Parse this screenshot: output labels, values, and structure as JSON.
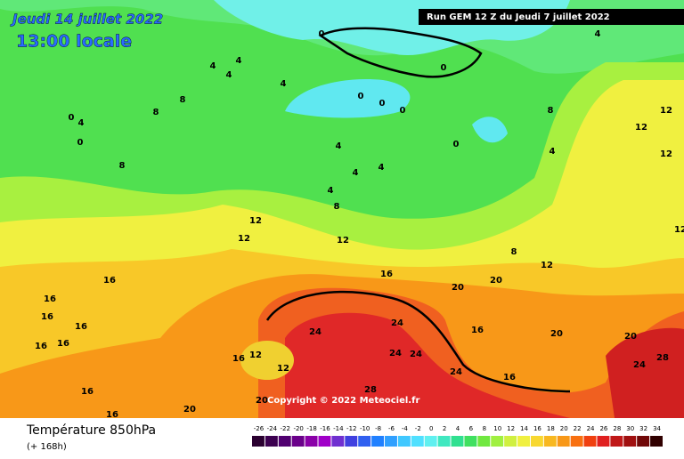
{
  "header": {
    "date": "Jeudi 14 juillet 2022",
    "time": "13:00 locale",
    "run": "Run GEM 12 Z du Jeudi 7 juillet 2022"
  },
  "map": {
    "copyright": "Copyright © 2022 Meteociel.fr",
    "contour_labels": [
      0,
      4,
      4,
      4,
      4,
      0,
      4,
      0,
      0,
      0,
      8,
      8,
      8,
      0,
      4,
      0,
      4,
      4,
      4,
      4,
      8,
      0,
      4,
      8,
      12,
      12,
      12,
      12,
      12,
      8,
      12,
      16,
      16,
      20,
      20,
      16,
      16,
      16,
      16,
      16,
      12,
      12,
      16,
      24,
      24,
      24,
      24,
      24,
      16,
      16,
      20,
      20,
      24,
      28,
      28,
      20,
      20,
      16,
      16,
      12,
      12
    ]
  },
  "footer": {
    "title": "Température 850hPa",
    "subtitle": "(+ 168h)"
  },
  "legend": {
    "values": [
      -26,
      -24,
      -22,
      -20,
      -18,
      -16,
      -14,
      -12,
      -10,
      -8,
      -6,
      -4,
      -2,
      0,
      2,
      4,
      6,
      8,
      10,
      12,
      14,
      16,
      18,
      20,
      22,
      24,
      26,
      28,
      30,
      32,
      34
    ],
    "colors": [
      "#2a0030",
      "#3c0050",
      "#500070",
      "#6a008a",
      "#8a00a8",
      "#a000c8",
      "#7030d0",
      "#4040e0",
      "#3060f0",
      "#2080ff",
      "#30a0ff",
      "#40c8ff",
      "#50e0ff",
      "#60f0f0",
      "#40e8c0",
      "#30e090",
      "#40e060",
      "#70e840",
      "#a0f040",
      "#d0f040",
      "#f0f040",
      "#f8d830",
      "#f8b820",
      "#f89818",
      "#f87010",
      "#f04010",
      "#e02020",
      "#c01818",
      "#a01010",
      "#700808",
      "#300000"
    ]
  }
}
